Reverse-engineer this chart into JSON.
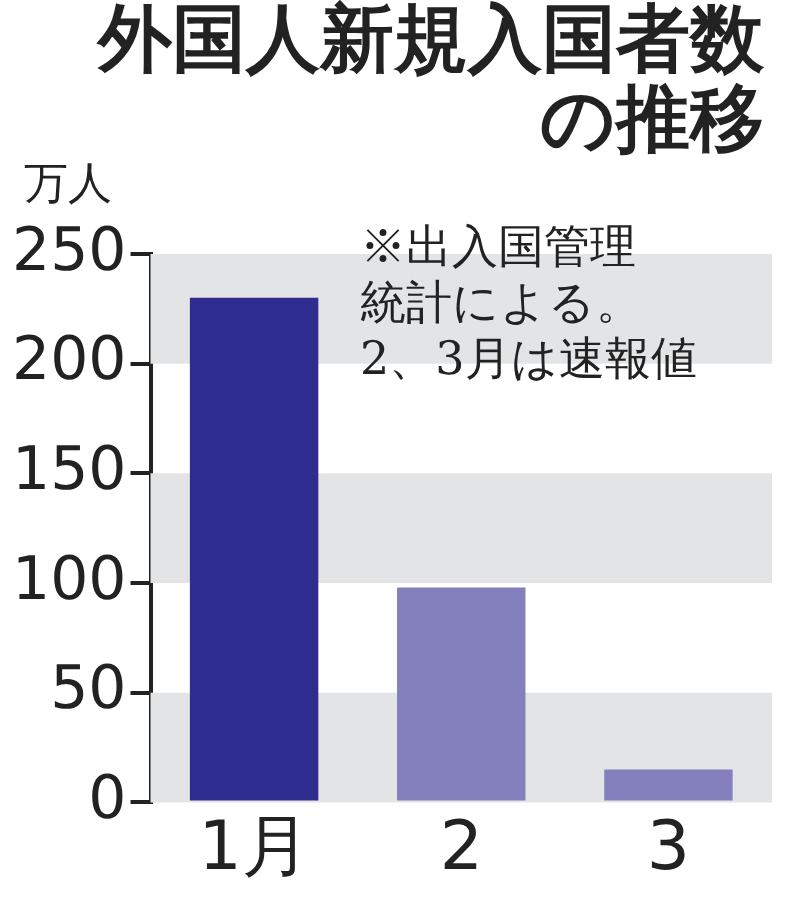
{
  "chart_data": {
    "type": "bar",
    "title": "外国人新規入国者数の推移",
    "ylabel": "万人",
    "annotations": [
      "※出入国管理",
      "統計による。",
      "2、3月は速報値"
    ],
    "categories": [
      "1月",
      "2",
      "3"
    ],
    "values": [
      230,
      98,
      15
    ],
    "colors": [
      "#2e2d8f",
      "#8480bd",
      "#8480bd"
    ],
    "ylim": [
      0,
      250
    ],
    "yticks": [
      0,
      50,
      100,
      150,
      200,
      250
    ],
    "grid": false,
    "bands": [
      {
        "axis": "y",
        "from": 0,
        "to": 50,
        "color": "#e3e4e6"
      },
      {
        "axis": "y",
        "from": 100,
        "to": 150,
        "color": "#e3e4e6"
      },
      {
        "axis": "y",
        "from": 200,
        "to": 250,
        "color": "#e3e4e6"
      }
    ]
  }
}
